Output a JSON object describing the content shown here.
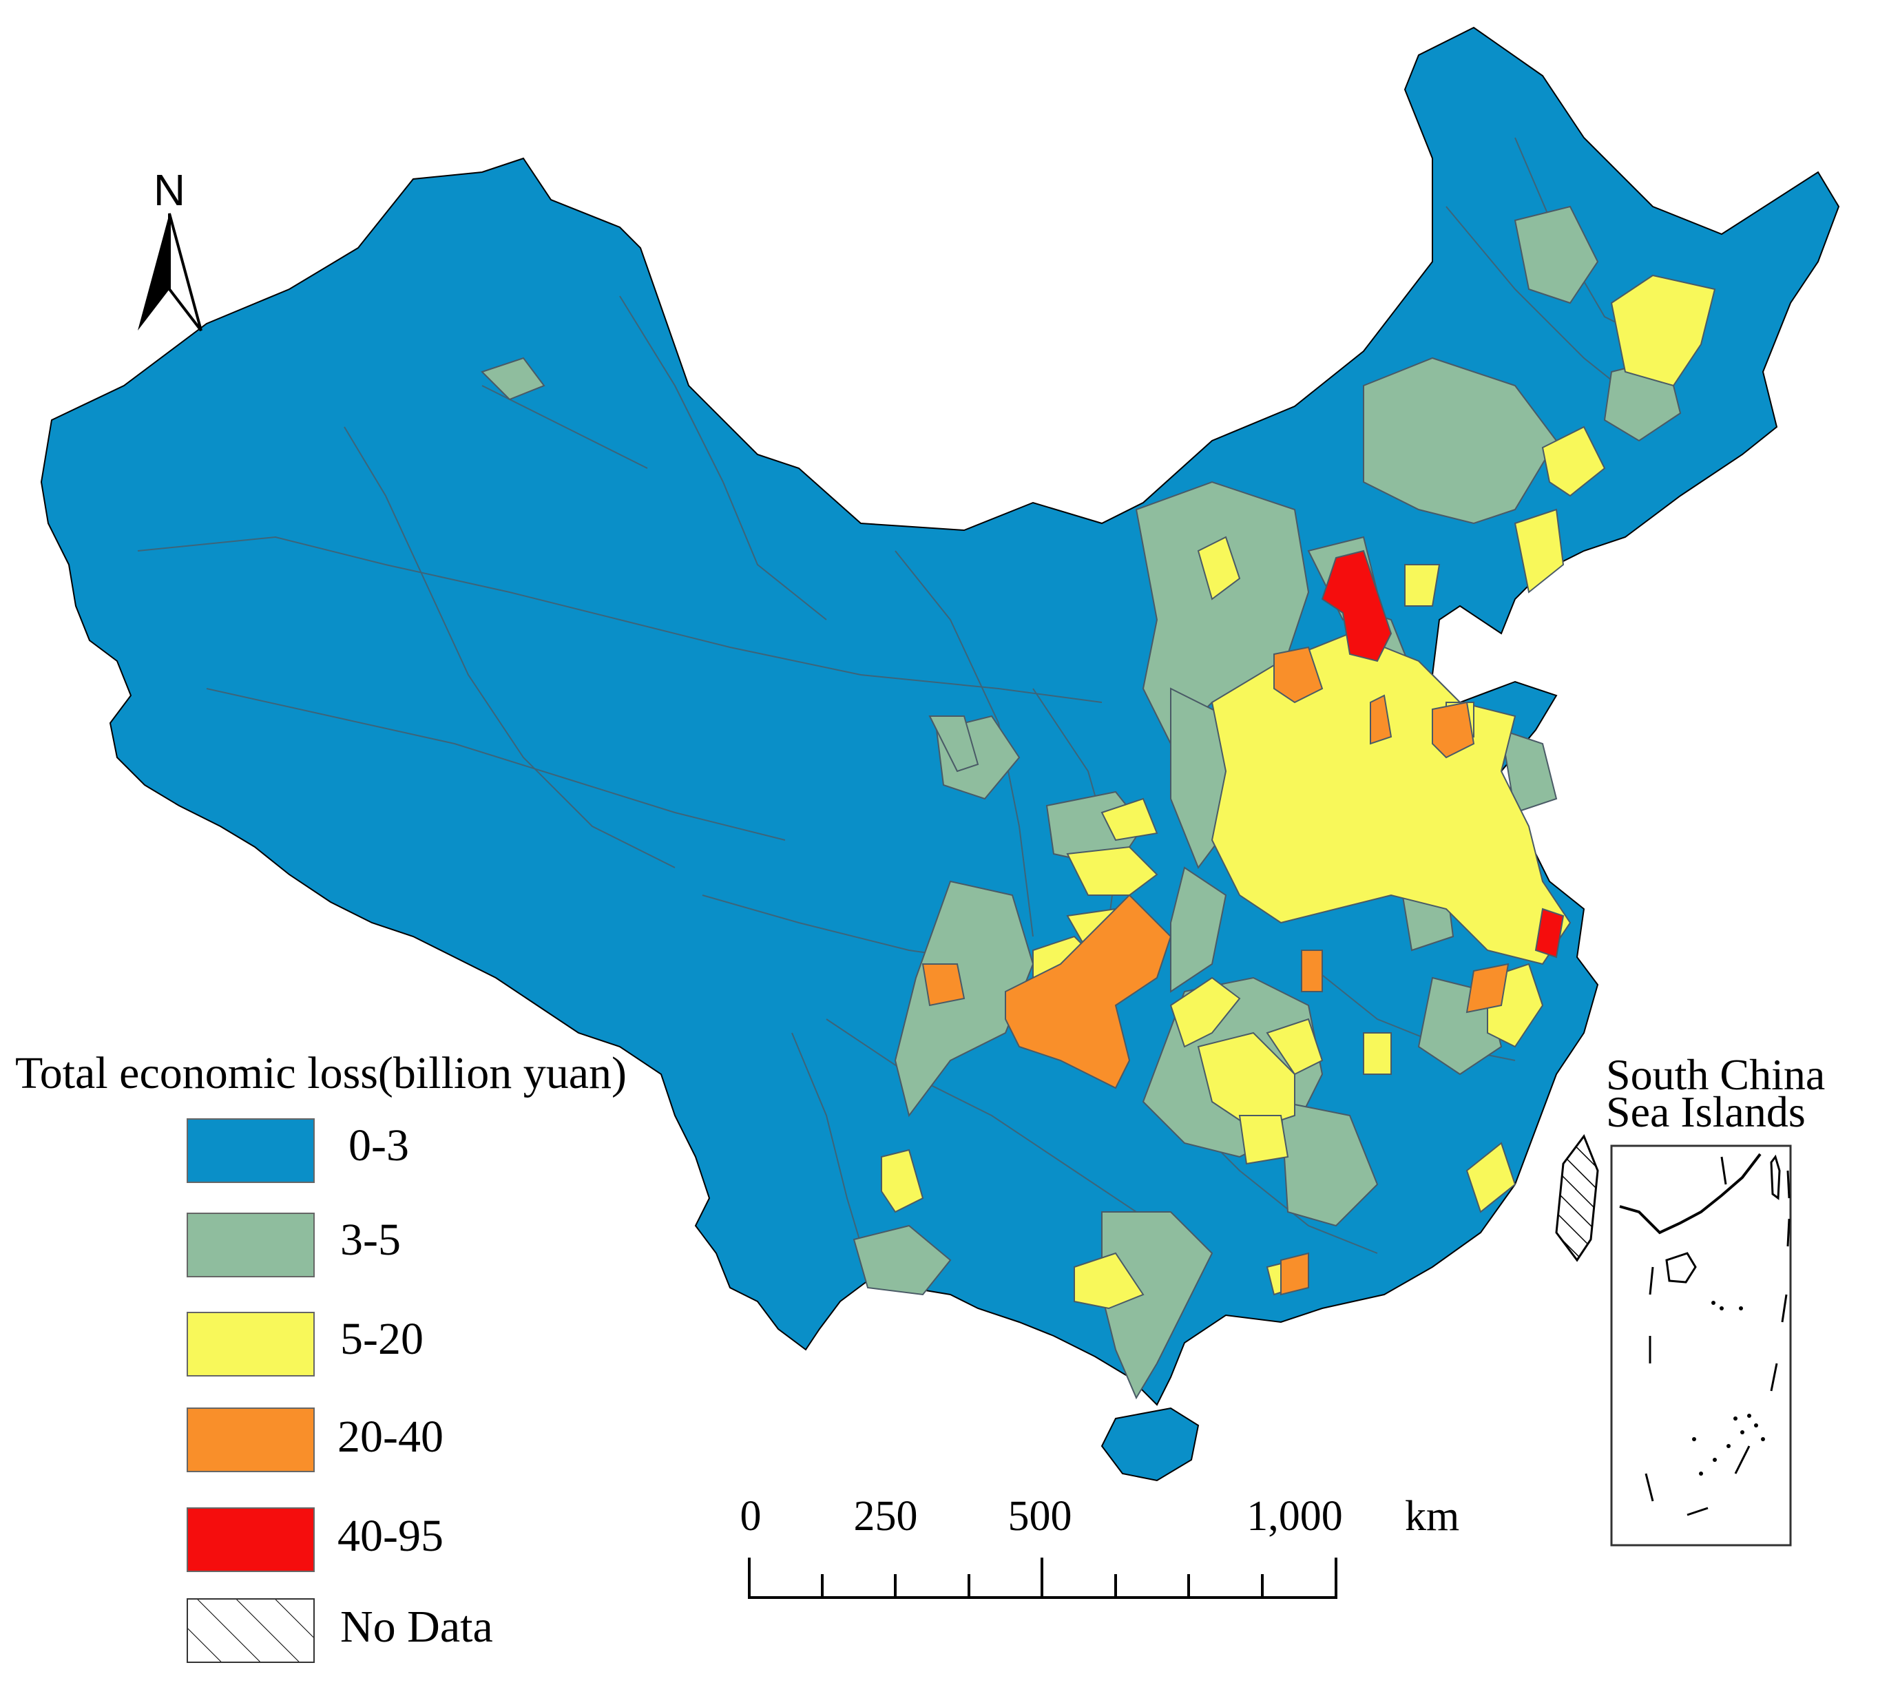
{
  "north_arrow": {
    "label": "N"
  },
  "legend": {
    "title": "Total economic loss(billion yuan)",
    "classes": [
      {
        "label": "0-3",
        "color": "#0a8fc8"
      },
      {
        "label": "3-5",
        "color": "#8fbd9e"
      },
      {
        "label": "5-20",
        "color": "#f8f85a"
      },
      {
        "label": "20-40",
        "color": "#f98f2a"
      },
      {
        "label": "40-95",
        "color": "#f50d0d"
      },
      {
        "label": "No Data",
        "color": "hatched"
      }
    ]
  },
  "scale_bar": {
    "ticks": [
      "0",
      "250",
      "500",
      "1,000"
    ],
    "unit": "km"
  },
  "inset": {
    "title_line1": "South China",
    "title_line2": "Sea Islands"
  },
  "colors": {
    "boundary": "#4a5a66",
    "outline": "#000000"
  }
}
